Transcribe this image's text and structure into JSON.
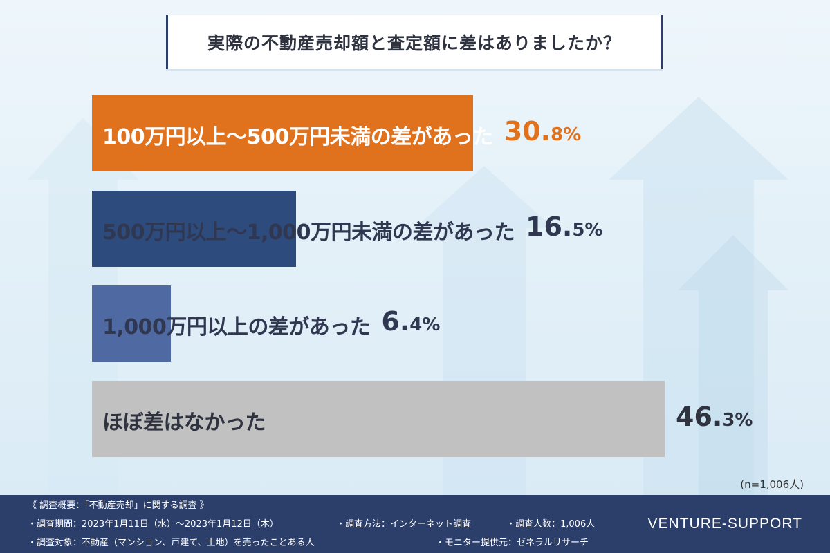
{
  "title": "実際の不動産売却額と査定額に差はありましたか？",
  "colors": {
    "orange": "#e0711d",
    "navy": "#2e4b7e",
    "blue": "#4f6aa3",
    "gray": "#c1c1c1",
    "footer": "#2c3f6b"
  },
  "chart_data": {
    "type": "bar",
    "orientation": "horizontal",
    "title": "実際の不動産売却額と査定額に差はありましたか？",
    "unit": "%",
    "categories": [
      "100万円以上～500万円未満の差があった",
      "500万円以上～1,000万円未満の差があった",
      "1,000万円以上の差があった",
      "ほぼ差はなかった"
    ],
    "values": [
      30.8,
      16.5,
      6.4,
      46.3
    ],
    "value_labels": [
      {
        "int": "30.",
        "dec": "8%"
      },
      {
        "int": "16.",
        "dec": "5%"
      },
      {
        "int": "6.",
        "dec": "4%"
      },
      {
        "int": "46.",
        "dec": "3%"
      }
    ],
    "bar_colors": [
      "#e0711d",
      "#2e4b7e",
      "#4f6aa3",
      "#c1c1c1"
    ],
    "label_colors": [
      "#ffffff",
      "#2f3850",
      "#2f3850",
      "#2f3340"
    ],
    "value_colors": [
      "#e0711d",
      "#2f3850",
      "#2f3850",
      "#2f3340"
    ],
    "xlim": [
      0,
      50
    ],
    "grid": false
  },
  "n_note": "(n=1,006人)",
  "footer": {
    "summary": "《 調査概要：「不動産売却」に関する調査 》",
    "period": "・調査期間：2023年1月11日（水）～2023年1月12日（木）",
    "method": "・調査方法：インターネット調査",
    "count": "・調査人数：1,006人",
    "target": "・調査対象：不動産（マンション、戸建て、土地）を売ったことある人",
    "provider": "・モニター提供元：ゼネラルリサーチ",
    "brand": "VENTURE-SUPPORT"
  }
}
